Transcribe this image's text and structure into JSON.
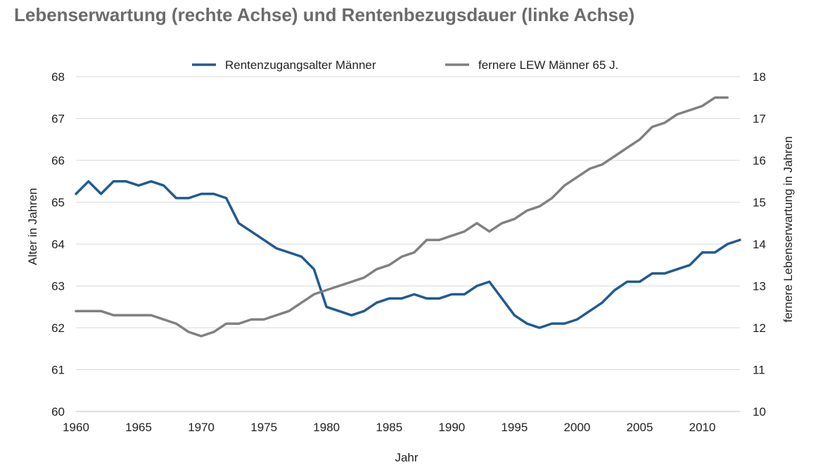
{
  "title": "Lebenserwartung (rechte Achse) und Rentenbezugsdauer (linke Achse)",
  "chart_data": {
    "type": "line",
    "title": "Lebenserwartung (rechte Achse) und Rentenbezugsdauer (linke Achse)",
    "xlabel": "Jahr",
    "ylabel_left": "Alter in Jahren",
    "ylabel_right": "fernere Lebenserwartung in Jahren",
    "xlim": [
      1960,
      2013
    ],
    "xticks": [
      "1960",
      "1965",
      "1970",
      "1975",
      "1980",
      "1985",
      "1990",
      "1995",
      "2000",
      "2005",
      "2010"
    ],
    "ylim_left": [
      60,
      68
    ],
    "yticks_left": [
      "60",
      "61",
      "62",
      "63",
      "64",
      "65",
      "66",
      "67",
      "68"
    ],
    "ylim_right": [
      10,
      18
    ],
    "yticks_right": [
      "10",
      "11",
      "12",
      "13",
      "14",
      "15",
      "16",
      "17",
      "18"
    ],
    "grid": true,
    "legend_position": "top",
    "series": [
      {
        "name": "Rentenzugangsalter Männer",
        "axis": "left",
        "color": "#1f5b93",
        "x": [
          1960,
          1961,
          1962,
          1963,
          1964,
          1965,
          1966,
          1967,
          1968,
          1969,
          1970,
          1971,
          1972,
          1973,
          1974,
          1975,
          1976,
          1977,
          1978,
          1979,
          1980,
          1981,
          1982,
          1983,
          1984,
          1985,
          1986,
          1987,
          1988,
          1989,
          1990,
          1991,
          1992,
          1993,
          1994,
          1995,
          1996,
          1997,
          1998,
          1999,
          2000,
          2001,
          2002,
          2003,
          2004,
          2005,
          2006,
          2007,
          2008,
          2009,
          2010,
          2011,
          2012,
          2013
        ],
        "values": [
          65.2,
          65.5,
          65.2,
          65.5,
          65.5,
          65.4,
          65.5,
          65.4,
          65.1,
          65.1,
          65.2,
          65.2,
          65.1,
          64.5,
          64.3,
          64.1,
          63.9,
          63.8,
          63.7,
          63.4,
          62.5,
          62.4,
          62.3,
          62.4,
          62.6,
          62.7,
          62.7,
          62.8,
          62.7,
          62.7,
          62.8,
          62.8,
          63.0,
          63.1,
          62.7,
          62.3,
          62.1,
          62.0,
          62.1,
          62.1,
          62.2,
          62.4,
          62.6,
          62.9,
          63.1,
          63.1,
          63.3,
          63.3,
          63.4,
          63.5,
          63.8,
          63.8,
          64.0,
          64.1
        ]
      },
      {
        "name": "fernere LEW Männer 65 J.",
        "axis": "right",
        "color": "#808080",
        "x": [
          1960,
          1961,
          1962,
          1963,
          1964,
          1965,
          1966,
          1967,
          1968,
          1969,
          1970,
          1971,
          1972,
          1973,
          1974,
          1975,
          1976,
          1977,
          1978,
          1979,
          1980,
          1981,
          1982,
          1983,
          1984,
          1985,
          1986,
          1987,
          1988,
          1989,
          1990,
          1991,
          1992,
          1993,
          1994,
          1995,
          1996,
          1997,
          1998,
          1999,
          2000,
          2001,
          2002,
          2003,
          2004,
          2005,
          2006,
          2007,
          2008,
          2009,
          2010,
          2011,
          2012
        ],
        "values": [
          12.4,
          12.4,
          12.4,
          12.3,
          12.3,
          12.3,
          12.3,
          12.2,
          12.1,
          11.9,
          11.8,
          11.9,
          12.1,
          12.1,
          12.2,
          12.2,
          12.3,
          12.4,
          12.6,
          12.8,
          12.9,
          13.0,
          13.1,
          13.2,
          13.4,
          13.5,
          13.7,
          13.8,
          14.1,
          14.1,
          14.2,
          14.3,
          14.5,
          14.3,
          14.5,
          14.6,
          14.8,
          14.9,
          15.1,
          15.4,
          15.6,
          15.8,
          15.9,
          16.1,
          16.3,
          16.5,
          16.8,
          16.9,
          17.1,
          17.2,
          17.3,
          17.5,
          17.5
        ]
      }
    ]
  }
}
